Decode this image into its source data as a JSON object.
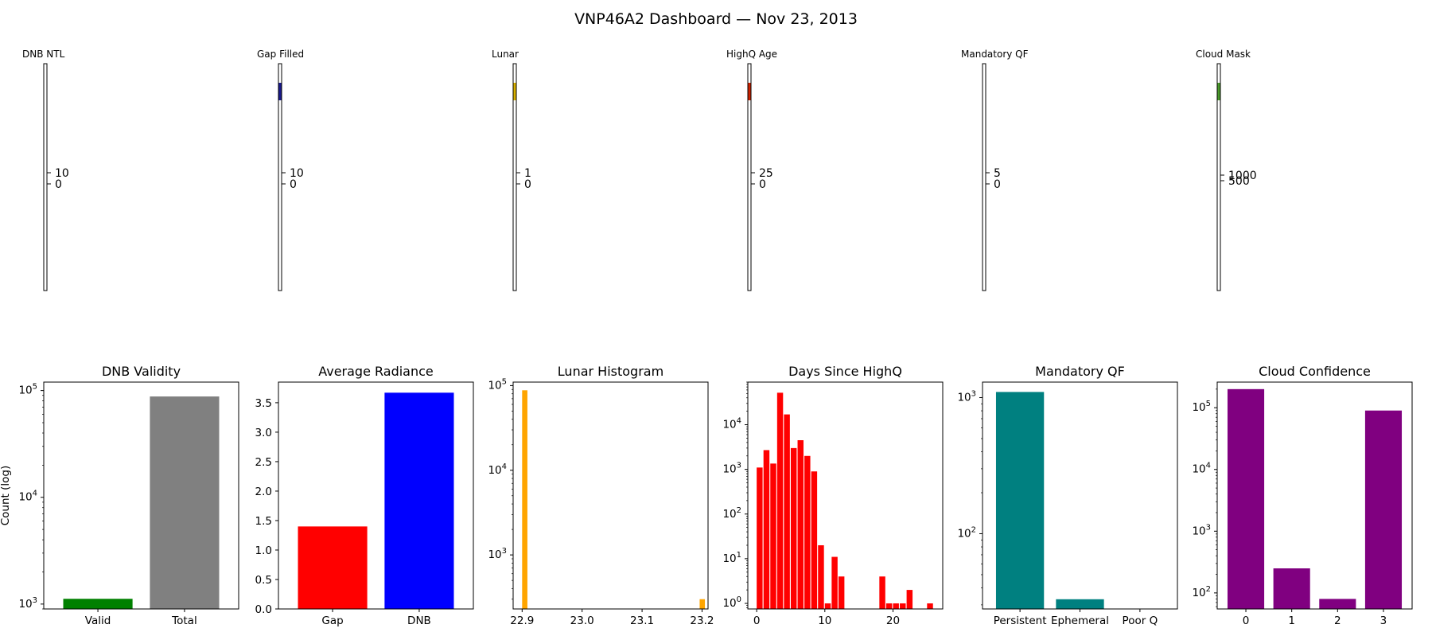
{
  "title": "VNP46A2 Dashboard — Nov 23, 2013",
  "colorbars": [
    {
      "label": "DNB NTL",
      "ticks": [
        "10",
        "0"
      ]
    },
    {
      "label": "Gap Filled",
      "ticks": [
        "10",
        "0"
      ]
    },
    {
      "label": "Lunar",
      "ticks": [
        "1",
        "0"
      ]
    },
    {
      "label": "HighQ Age",
      "ticks": [
        "25",
        "0"
      ]
    },
    {
      "label": "Mandatory QF",
      "ticks": [
        "5",
        "0"
      ]
    },
    {
      "label": "Cloud Mask",
      "ticks": [
        "1000",
        "500"
      ]
    }
  ],
  "chart_data": [
    {
      "type": "bar",
      "title": "DNB Validity",
      "ylabel": "Count (log)",
      "yscale": "log",
      "ylim": [
        900,
        120000
      ],
      "categories": [
        "Valid",
        "Total"
      ],
      "values": [
        1120,
        88000
      ],
      "colors": [
        "#008000",
        "#808080"
      ]
    },
    {
      "type": "bar",
      "title": "Average Radiance",
      "yscale": "linear",
      "ylim": [
        0,
        3.85
      ],
      "yticks": [
        0.0,
        0.5,
        1.0,
        1.5,
        2.0,
        2.5,
        3.0,
        3.5
      ],
      "categories": [
        "Gap",
        "DNB"
      ],
      "values": [
        1.4,
        3.67
      ],
      "colors": [
        "#ff0000",
        "#0000ff"
      ]
    },
    {
      "type": "bar",
      "title": "Lunar Histogram",
      "yscale": "log",
      "ylim": [
        230,
        110000
      ],
      "xlim": [
        22.885,
        23.21
      ],
      "xticks": [
        22.9,
        23.0,
        23.1,
        23.2
      ],
      "bin_width": 0.0088,
      "x": [
        22.9,
        23.196
      ],
      "values": [
        88000,
        300
      ],
      "color": "#ffa500"
    },
    {
      "type": "bar",
      "title": "Days Since HighQ",
      "yscale": "log",
      "ylim": [
        0.75,
        90000
      ],
      "xlim": [
        -1.3,
        27.3
      ],
      "xticks": [
        0,
        10,
        20
      ],
      "bin_width": 0.87,
      "x": [
        0,
        1,
        2,
        3,
        4,
        5,
        6,
        7,
        8,
        9,
        10,
        11,
        12,
        18,
        19,
        20,
        21,
        22,
        25
      ],
      "values": [
        1100,
        2700,
        1350,
        52000,
        17000,
        3000,
        4500,
        2000,
        900,
        20,
        1,
        11,
        4,
        4,
        1,
        1,
        1,
        2,
        1
      ],
      "color": "#ff0000"
    },
    {
      "type": "bar",
      "title": "Mandatory QF",
      "yscale": "log",
      "ylim": [
        28,
        1300
      ],
      "categories": [
        "Persistent",
        "Ephemeral",
        "Poor Q"
      ],
      "values": [
        1100,
        33,
        0
      ],
      "color": "#008080"
    },
    {
      "type": "bar",
      "title": "Cloud Confidence",
      "yscale": "log",
      "ylim": [
        55,
        260000
      ],
      "categories": [
        "0",
        "1",
        "2",
        "3"
      ],
      "values": [
        200000,
        250,
        80,
        90000
      ],
      "color": "#800080"
    }
  ]
}
